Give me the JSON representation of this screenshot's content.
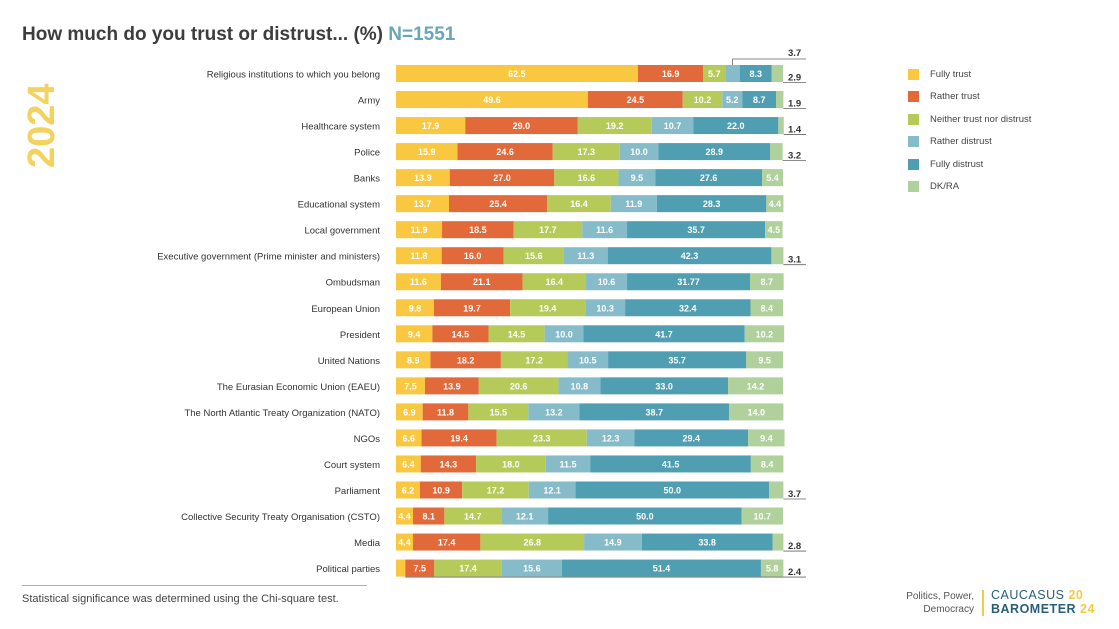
{
  "page": {
    "title": "How much do you trust or distrust... (%)",
    "n_label": "N=1551",
    "year": "2024",
    "footnote": "Statistical significance was determined using the Chi-square test.",
    "tagline": [
      "Politics, Power,",
      "Democracy"
    ],
    "brand": {
      "line1": "CAUCASUS",
      "line2": "BAROMETER",
      "year1": "20",
      "year2": "24"
    }
  },
  "chart_data": {
    "type": "bar",
    "orientation": "horizontal",
    "stacked": true,
    "legend_position": "right",
    "grid": false,
    "xlim": [
      0,
      100
    ],
    "series": [
      {
        "name": "Fully trust",
        "color": "#f9c840"
      },
      {
        "name": "Rather trust",
        "color": "#e2693a"
      },
      {
        "name": "Neither trust nor distrust",
        "color": "#b6ca5a"
      },
      {
        "name": "Rather distrust",
        "color": "#86bcc9"
      },
      {
        "name": "Fully distrust",
        "color": "#4f9eb2"
      },
      {
        "name": "DK/RA",
        "color": "#b0d09c"
      }
    ],
    "rows": [
      {
        "category": "Religious institutions to which you belong",
        "values": [
          62.5,
          16.9,
          5.7,
          3.7,
          8.3,
          2.9
        ],
        "labels": [
          "62.5",
          "16.9",
          "5.7",
          "3.7",
          "8.3",
          "2.9"
        ]
      },
      {
        "category": "Army",
        "values": [
          49.6,
          24.5,
          10.2,
          5.2,
          8.7,
          1.9
        ],
        "labels": [
          "49.6",
          "24.5",
          "10.2",
          "5.2",
          "8.7",
          "1.9"
        ]
      },
      {
        "category": "Healthcare system",
        "values": [
          17.9,
          29.0,
          19.2,
          10.7,
          22.0,
          1.4
        ],
        "labels": [
          "17.9",
          "29.0",
          "19.2",
          "10.7",
          "22.0",
          "1.4"
        ]
      },
      {
        "category": "Police",
        "values": [
          15.9,
          24.6,
          17.3,
          10.0,
          28.9,
          3.2
        ],
        "labels": [
          "15.9",
          "24.6",
          "17.3",
          "10.0",
          "28.9",
          "3.2"
        ]
      },
      {
        "category": "Banks",
        "values": [
          13.9,
          27.0,
          16.6,
          9.5,
          27.6,
          5.4
        ],
        "labels": [
          "13.9",
          "27.0",
          "16.6",
          "9.5",
          "27.6",
          "5.4"
        ]
      },
      {
        "category": "Educational system",
        "values": [
          13.7,
          25.4,
          16.4,
          11.9,
          28.3,
          4.4
        ],
        "labels": [
          "13.7",
          "25.4",
          "16.4",
          "11.9",
          "28.3",
          "4.4"
        ]
      },
      {
        "category": "Local government",
        "values": [
          11.9,
          18.5,
          17.7,
          11.6,
          35.7,
          4.5
        ],
        "labels": [
          "11.9",
          "18.5",
          "17.7",
          "11.6",
          "35.7",
          "4.5"
        ]
      },
      {
        "category": "Executive government (Prime minister and ministers)",
        "values": [
          11.8,
          16.0,
          15.6,
          11.3,
          42.3,
          3.1
        ],
        "labels": [
          "11.8",
          "16.0",
          "15.6",
          "11.3",
          "42.3",
          "3.1"
        ]
      },
      {
        "category": "Ombudsman",
        "values": [
          11.6,
          21.1,
          16.4,
          10.6,
          31.77,
          8.7
        ],
        "labels": [
          "11.6",
          "21.1",
          "16.4",
          "10.6",
          "31.77",
          "8.7"
        ]
      },
      {
        "category": "European Union",
        "values": [
          9.8,
          19.7,
          19.4,
          10.3,
          32.4,
          8.4
        ],
        "labels": [
          "9.8",
          "19.7",
          "19.4",
          "10.3",
          "32.4",
          "8.4"
        ]
      },
      {
        "category": "President",
        "values": [
          9.4,
          14.5,
          14.5,
          10.0,
          41.7,
          10.2
        ],
        "labels": [
          "9.4",
          "14.5",
          "14.5",
          "10.0",
          "41.7",
          "10.2"
        ]
      },
      {
        "category": "United Nations",
        "values": [
          8.9,
          18.2,
          17.2,
          10.5,
          35.7,
          9.5
        ],
        "labels": [
          "8.9",
          "18.2",
          "17.2",
          "10.5",
          "35.7",
          "9.5"
        ]
      },
      {
        "category": "The Eurasian Economic Union (EAEU)",
        "values": [
          7.5,
          13.9,
          20.6,
          10.8,
          33.0,
          14.2
        ],
        "labels": [
          "7.5",
          "13.9",
          "20.6",
          "10.8",
          "33.0",
          "14.2"
        ]
      },
      {
        "category": "The North Atlantic Treaty Organization (NATO)",
        "values": [
          6.9,
          11.8,
          15.5,
          13.2,
          38.7,
          14.0
        ],
        "labels": [
          "6.9",
          "11.8",
          "15.5",
          "13.2",
          "38.7",
          "14.0"
        ]
      },
      {
        "category": "NGOs",
        "values": [
          6.6,
          19.4,
          23.3,
          12.3,
          29.4,
          9.4
        ],
        "labels": [
          "6.6",
          "19.4",
          "23.3",
          "12.3",
          "29.4",
          "9.4"
        ]
      },
      {
        "category": "Court system",
        "values": [
          6.4,
          14.3,
          18.0,
          11.5,
          41.5,
          8.4
        ],
        "labels": [
          "6.4",
          "14.3",
          "18.0",
          "11.5",
          "41.5",
          "8.4"
        ]
      },
      {
        "category": "Parliament",
        "values": [
          6.2,
          10.9,
          17.2,
          12.1,
          50.0,
          3.7
        ],
        "labels": [
          "6.2",
          "10.9",
          "17.2",
          "12.1",
          "50.0",
          "3.7"
        ]
      },
      {
        "category": "Collective Security Treaty Organisation (CSTO)",
        "values": [
          4.4,
          8.1,
          14.7,
          12.1,
          50.0,
          10.7
        ],
        "labels": [
          "4.4",
          "8.1",
          "14.7",
          "12.1",
          "50.0",
          "10.7"
        ]
      },
      {
        "category": "Media",
        "values": [
          4.4,
          17.4,
          26.8,
          14.9,
          33.8,
          2.8
        ],
        "labels": [
          "4.4",
          "17.4",
          "26.8",
          "14.9",
          "33.8",
          "2.8"
        ]
      },
      {
        "category": "Political parties",
        "values": [
          2.4,
          7.5,
          17.4,
          15.6,
          51.4,
          5.8
        ],
        "labels": [
          "",
          "7.5",
          "17.4",
          "15.6",
          "51.4",
          "5.8"
        ]
      }
    ],
    "outside_labels": [
      {
        "row": 0,
        "series": 3,
        "text": "3.7",
        "place": "above"
      },
      {
        "row": 0,
        "series": 5,
        "text": "2.9",
        "place": "right"
      },
      {
        "row": 1,
        "series": 5,
        "text": "1.9",
        "place": "right"
      },
      {
        "row": 2,
        "series": 5,
        "text": "1.4",
        "place": "right"
      },
      {
        "row": 3,
        "series": 5,
        "text": "3.2",
        "place": "right"
      },
      {
        "row": 7,
        "series": 5,
        "text": "3.1",
        "place": "right"
      },
      {
        "row": 16,
        "series": 5,
        "text": "3.7",
        "place": "right"
      },
      {
        "row": 18,
        "series": 5,
        "text": "2.8",
        "place": "right"
      },
      {
        "row": 19,
        "series": 0,
        "text": "2.4",
        "place": "right"
      }
    ]
  }
}
